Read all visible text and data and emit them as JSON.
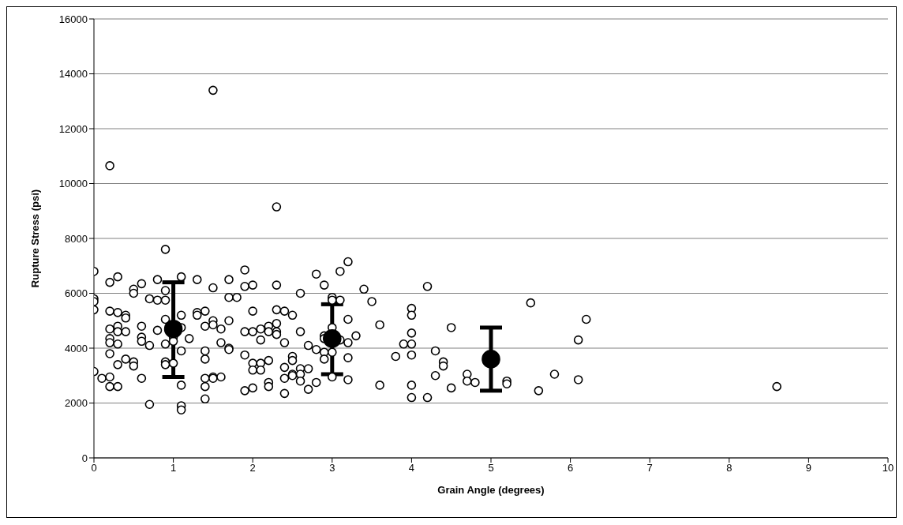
{
  "chart_data": {
    "type": "scatter",
    "xlabel": "Grain Angle (degrees)",
    "ylabel": "Rupture Stress (psi)",
    "xlim": [
      0,
      10
    ],
    "xticks": [
      0,
      1,
      2,
      3,
      4,
      5,
      6,
      7,
      8,
      9,
      10
    ],
    "ylim": [
      0,
      16000
    ],
    "yticks": [
      0,
      2000,
      4000,
      6000,
      8000,
      10000,
      12000,
      14000,
      16000
    ],
    "grid": "y",
    "legend": false,
    "series": [
      {
        "color": "#000000",
        "marker": "circle",
        "x": [
          0,
          0,
          0,
          0,
          0,
          0.1,
          0.2,
          0.2,
          0.2,
          0.2,
          0.2,
          0.2,
          0.2,
          0.2,
          0.2,
          0.3,
          0.3,
          0.3,
          0.3,
          0.3,
          0.3,
          0.3,
          0.4,
          0.4,
          0.4,
          0.4,
          0.5,
          0.5,
          0.5,
          0.5,
          0.6,
          0.6,
          0.6,
          0.6,
          0.6,
          0.7,
          0.7,
          0.7,
          0.8,
          0.8,
          0.8,
          0.9,
          0.9,
          0.9,
          0.9,
          0.9,
          0.9,
          0.9,
          1.0,
          1.0,
          1.0,
          1.1,
          1.1,
          1.1,
          1.1,
          1.1,
          1.1,
          1.1,
          1.2,
          1.3,
          1.3,
          1.3,
          1.4,
          1.4,
          1.4,
          1.4,
          1.4,
          1.4,
          1.4,
          1.5,
          1.5,
          1.5,
          1.5,
          1.5,
          1.5,
          1.6,
          1.6,
          1.6,
          1.7,
          1.7,
          1.7,
          1.7,
          1.7,
          1.8,
          1.9,
          1.9,
          1.9,
          1.9,
          1.9,
          2.0,
          2.0,
          2.0,
          2.0,
          2.0,
          2.0,
          2.1,
          2.1,
          2.1,
          2.1,
          2.2,
          2.2,
          2.2,
          2.2,
          2.2,
          2.3,
          2.3,
          2.3,
          2.3,
          2.3,
          2.3,
          2.4,
          2.4,
          2.4,
          2.4,
          2.4,
          2.5,
          2.5,
          2.5,
          2.5,
          2.5,
          2.6,
          2.6,
          2.6,
          2.6,
          2.6,
          2.7,
          2.7,
          2.7,
          2.8,
          2.8,
          2.8,
          2.9,
          2.9,
          2.9,
          2.9,
          2.9,
          3.0,
          3.0,
          3.0,
          3.0,
          3.0,
          3.1,
          3.1,
          3.1,
          3.2,
          3.2,
          3.2,
          3.2,
          3.2,
          3.3,
          3.4,
          3.5,
          3.6,
          3.6,
          3.8,
          3.9,
          4.0,
          4.0,
          4.0,
          4.0,
          4.0,
          4.0,
          4.0,
          4.2,
          4.2,
          4.3,
          4.3,
          4.4,
          4.4,
          4.5,
          4.5,
          4.7,
          4.7,
          4.8,
          5.2,
          5.2,
          5.5,
          5.6,
          5.8,
          6.1,
          6.1,
          6.2,
          8.6
        ],
        "values": [
          6800,
          5800,
          5700,
          5400,
          3150,
          2900,
          10650,
          6400,
          5350,
          4700,
          4350,
          4200,
          3800,
          2950,
          2600,
          6600,
          5300,
          4800,
          4600,
          4150,
          3400,
          2600,
          5200,
          5100,
          4600,
          3600,
          6150,
          6000,
          3500,
          3350,
          6350,
          4800,
          4400,
          4250,
          2900,
          5800,
          4100,
          1950,
          6500,
          5750,
          4650,
          7600,
          6100,
          5750,
          5050,
          4150,
          3500,
          3400,
          4400,
          4250,
          3450,
          6600,
          5200,
          4750,
          3900,
          2650,
          1900,
          1750,
          4350,
          6500,
          5300,
          5200,
          5350,
          4800,
          3900,
          3600,
          2900,
          2600,
          2150,
          13400,
          6200,
          5000,
          4850,
          2950,
          2900,
          4700,
          4200,
          2950,
          6500,
          5850,
          5000,
          4000,
          3950,
          5850,
          6850,
          6250,
          4600,
          3750,
          2450,
          6300,
          5350,
          4600,
          3450,
          3200,
          2550,
          4700,
          4300,
          3450,
          3200,
          4800,
          4600,
          3550,
          2750,
          2600,
          9150,
          6300,
          5400,
          4900,
          4600,
          4500,
          5350,
          4200,
          3300,
          2900,
          2350,
          5200,
          3700,
          3550,
          3050,
          3000,
          6000,
          4600,
          3250,
          3050,
          2800,
          4100,
          3250,
          2500,
          6700,
          3950,
          2750,
          6300,
          4450,
          4350,
          3850,
          3600,
          5850,
          5750,
          4750,
          3850,
          2950,
          6800,
          5750,
          4300,
          7150,
          5050,
          4200,
          3650,
          2850,
          4450,
          6150,
          5700,
          4850,
          2650,
          3700,
          4150,
          5450,
          5200,
          4550,
          4150,
          3750,
          2650,
          2200,
          6250,
          2200,
          3900,
          3000,
          3500,
          3350,
          4750,
          2550,
          3050,
          2800,
          2750,
          2800,
          2700,
          5650,
          2450,
          3050,
          4300,
          2850,
          5050,
          2600
        ]
      },
      {
        "color": "#000000",
        "marker": "circle",
        "x": [
          1,
          3,
          5
        ],
        "values": [
          4700,
          4350,
          3600
        ],
        "errors": [
          [
            2950,
            6400
          ],
          [
            3050,
            5600
          ],
          [
            2450,
            4750
          ]
        ]
      }
    ]
  }
}
